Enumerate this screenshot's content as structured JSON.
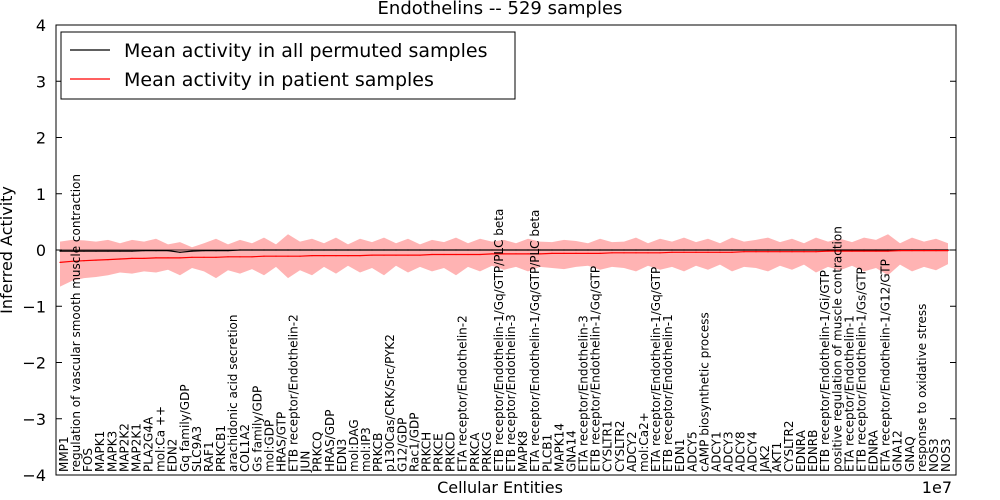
{
  "chart_data": {
    "type": "line",
    "title": "Endothelins -- 529 samples",
    "xlabel": "Cellular Entities",
    "ylabel": "Inferred Activity",
    "offset_label": "1e7",
    "ylim": [
      -4,
      4
    ],
    "yticks": [
      4,
      3,
      2,
      1,
      0,
      -1,
      -2,
      -3,
      -4
    ],
    "ytick_labels": [
      "4",
      "3",
      "2",
      "1",
      "0",
      "−1",
      "−2",
      "−3",
      "−4"
    ],
    "legend": {
      "position": "top-left",
      "entries": [
        {
          "label": "Mean activity in all permuted samples",
          "color": "#000000"
        },
        {
          "label": "Mean activity in patient samples",
          "color": "#ff0000"
        }
      ]
    },
    "entities": [
      "MMP1",
      "regulation of vascular smooth muscle contraction",
      "FOS",
      "MAPK1",
      "MAPK3",
      "MAP2K2",
      "MAP2K1",
      "PLA2G4A",
      "mol:Ca ++",
      "EDN2",
      "Gq family/GDP",
      "SLC9A3",
      "RAF1",
      "PRKCB1",
      "arachidonic acid secretion",
      "COL1A2",
      "Gs family/GDP",
      "mol:GDP",
      "HRAS/GTP",
      "ETB receptor/Endothelin-2",
      "JUN",
      "PRKCQ",
      "HRAS/GDP",
      "EDN3",
      "mol:DAG",
      "mol:IP3",
      "PRKCB",
      "p130Cas/CRK/Src/PYK2",
      "G12/GDP",
      "Rac1/GDP",
      "PRKCH",
      "PRKCE",
      "PRKCD",
      "ETA receptor/Endothelin-2",
      "PRKCA",
      "PRKCG",
      "ETB receptor/Endothelin-1/Gq/GTP/PLC beta",
      "ETB receptor/Endothelin-3",
      "MAPK8",
      "ETA receptor/Endothelin-1/Gq/GTP/PLC beta",
      "PLCB1",
      "MAPK14",
      "GNA14",
      "ETA receptor/Endothelin-3",
      "ETB receptor/Endothelin-1/Gq/GTP",
      "CYSLTR1",
      "CYSLTR2",
      "ADCY2",
      "mol:Ca2+",
      "ETA receptor/Endothelin-1/Gq/GTP",
      "ETB receptor/Endothelin-1",
      "EDN1",
      "ADCY5",
      "cAMP biosynthetic process",
      "ADCY1",
      "ADCY3",
      "ADCY8",
      "ADCY4",
      "JAK2",
      "AKT1",
      "CYSLTR2",
      "EDNRA",
      "EDNRB",
      "ETB receptor/Endothelin-1/Gi/GTP",
      "positive regulation of muscle contraction",
      "ETA receptor/Endothelin-1",
      "ETB receptor/Endothelin-1/Gs/GTP",
      "EDNRA",
      "ETA receptor/Endothelin-1/G12/GTP",
      "GNA12",
      "GNAQ",
      "response to oxidative stress",
      "NOS3",
      "NOS3"
    ],
    "series": [
      {
        "name": "Mean activity in all permuted samples",
        "color": "#000000",
        "values": [
          -0.02,
          -0.02,
          -0.02,
          -0.02,
          -0.02,
          -0.02,
          -0.02,
          -0.01,
          -0.01,
          -0.01,
          -0.04,
          -0.02,
          -0.01,
          -0.01,
          -0.01,
          0,
          0,
          0,
          0,
          0,
          0,
          0,
          0,
          0,
          0,
          0,
          0,
          0,
          0,
          0,
          0,
          0,
          0,
          0,
          0,
          0,
          0,
          0,
          0,
          0,
          0,
          0,
          0,
          0,
          0,
          0,
          0,
          0,
          0,
          0,
          0,
          0,
          0,
          0,
          0,
          0,
          0,
          0,
          0,
          0,
          0,
          0,
          0,
          0,
          0,
          0,
          0,
          0,
          0,
          0,
          0,
          0,
          0,
          0,
          0
        ]
      },
      {
        "name": "Mean activity in patient samples",
        "color": "#ff0000",
        "values": [
          -0.22,
          -0.2,
          -0.19,
          -0.18,
          -0.17,
          -0.16,
          -0.15,
          -0.15,
          -0.14,
          -0.14,
          -0.14,
          -0.13,
          -0.13,
          -0.13,
          -0.12,
          -0.12,
          -0.12,
          -0.11,
          -0.11,
          -0.11,
          -0.11,
          -0.1,
          -0.1,
          -0.1,
          -0.1,
          -0.1,
          -0.09,
          -0.09,
          -0.09,
          -0.09,
          -0.09,
          -0.08,
          -0.08,
          -0.08,
          -0.08,
          -0.08,
          -0.07,
          -0.07,
          -0.07,
          -0.07,
          -0.07,
          -0.06,
          -0.06,
          -0.06,
          -0.06,
          -0.06,
          -0.05,
          -0.05,
          -0.05,
          -0.05,
          -0.05,
          -0.04,
          -0.04,
          -0.04,
          -0.04,
          -0.04,
          -0.04,
          -0.03,
          -0.03,
          -0.03,
          -0.03,
          -0.03,
          -0.03,
          -0.03,
          -0.02,
          -0.02,
          -0.02,
          -0.02,
          -0.02,
          -0.02,
          -0.01,
          -0.01,
          -0.01,
          -0.01,
          -0.01
        ]
      }
    ],
    "band": {
      "name": "Patient sample spread",
      "color": "#ff9999",
      "upper": [
        0.15,
        0.18,
        0.17,
        0.15,
        0.18,
        0.12,
        0.18,
        0.15,
        0.2,
        0.1,
        0.14,
        0.05,
        0.12,
        0.2,
        0.1,
        0.18,
        0.12,
        0.22,
        0.1,
        0.28,
        0.15,
        0.2,
        0.12,
        0.22,
        0.1,
        0.2,
        0.14,
        0.22,
        0.12,
        0.2,
        0.1,
        0.18,
        0.14,
        0.22,
        0.12,
        0.2,
        0.15,
        0.18,
        0.12,
        0.2,
        0.15,
        0.14,
        0.18,
        0.16,
        0.12,
        0.2,
        0.14,
        0.15,
        0.22,
        0.12,
        0.2,
        0.15,
        0.22,
        0.14,
        0.2,
        0.12,
        0.22,
        0.15,
        0.18,
        0.22,
        0.14,
        0.2,
        0.12,
        0.22,
        0.15,
        0.2,
        0.14,
        0.22,
        0.18,
        0.28,
        0.12,
        0.22,
        0.15,
        0.2,
        0.12
      ],
      "lower": [
        -0.65,
        -0.55,
        -0.5,
        -0.48,
        -0.45,
        -0.4,
        -0.42,
        -0.38,
        -0.4,
        -0.35,
        -0.45,
        -0.32,
        -0.38,
        -0.5,
        -0.36,
        -0.42,
        -0.34,
        -0.45,
        -0.3,
        -0.5,
        -0.36,
        -0.45,
        -0.3,
        -0.42,
        -0.28,
        -0.4,
        -0.32,
        -0.45,
        -0.28,
        -0.4,
        -0.3,
        -0.38,
        -0.32,
        -0.45,
        -0.3,
        -0.38,
        -0.28,
        -0.35,
        -0.3,
        -0.38,
        -0.3,
        -0.32,
        -0.34,
        -0.3,
        -0.28,
        -0.35,
        -0.3,
        -0.32,
        -0.38,
        -0.28,
        -0.35,
        -0.3,
        -0.38,
        -0.28,
        -0.35,
        -0.26,
        -0.38,
        -0.3,
        -0.32,
        -0.38,
        -0.28,
        -0.35,
        -0.26,
        -0.4,
        -0.3,
        -0.36,
        -0.28,
        -0.38,
        -0.32,
        -0.45,
        -0.26,
        -0.38,
        -0.3,
        -0.36,
        -0.25
      ]
    }
  }
}
